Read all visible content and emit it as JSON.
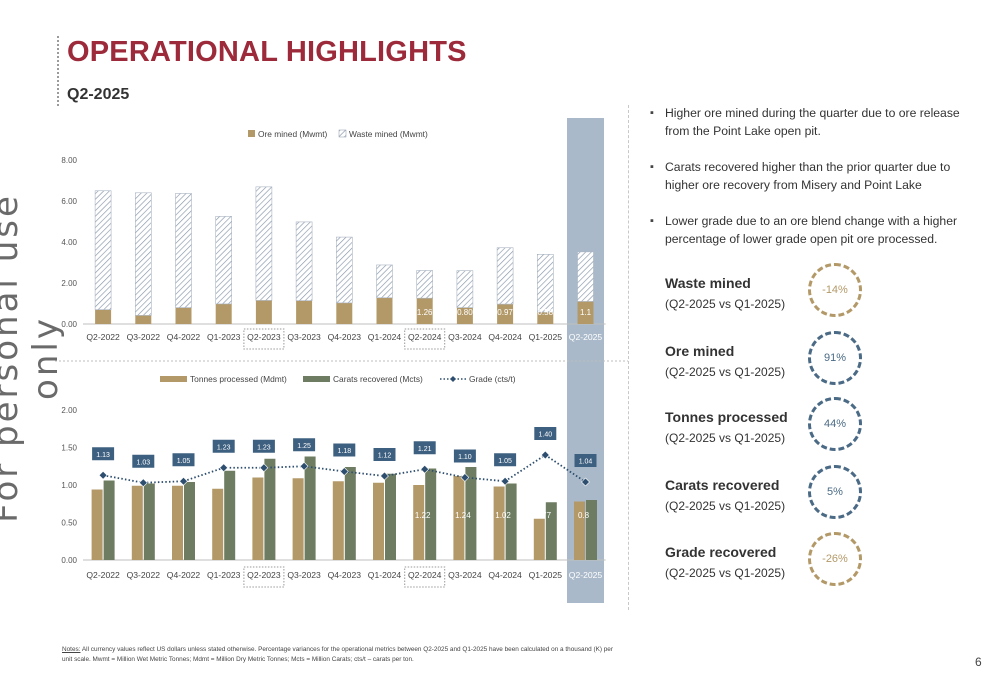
{
  "watermark": "For personal use only",
  "title": "OPERATIONAL HIGHLIGHTS",
  "subtitle": "Q2-2025",
  "bullets": [
    "Higher ore mined during the quarter due to ore release from the Point Lake open pit.",
    "Carats recovered higher than the prior quarter due to higher ore recovery from Misery and Point Lake",
    "Lower grade due to an ore blend change with a higher percentage of lower grade open pit ore processed."
  ],
  "metrics": [
    {
      "name": "Waste mined",
      "comparison": "(Q2-2025 vs Q1-2025)",
      "value": "-14%",
      "color": "gold"
    },
    {
      "name": "Ore mined",
      "comparison": "(Q2-2025 vs Q1-2025)",
      "value": "91%",
      "color": "blue"
    },
    {
      "name": "Tonnes processed",
      "comparison": "(Q2-2025 vs Q1-2025)",
      "value": "44%",
      "color": "blue"
    },
    {
      "name": "Carats recovered",
      "comparison": "(Q2-2025 vs Q1-2025)",
      "value": "5%",
      "color": "blue"
    },
    {
      "name": "Grade recovered",
      "comparison": "(Q2-2025 vs Q1-2025)",
      "value": "-26%",
      "color": "gold"
    }
  ],
  "notes_label": "Notes:",
  "notes_text": " All currency values reflect US dollars unless stated otherwise. Percentage variances for the operational metrics between Q2-2025 and Q1-2025 have been calculated on a thousand (K) per unit scale. Mwmt = Million Wet Metric Tonnes; Mdmt = Million Dry Metric Tonnes; Mcts = Million Carats; cts/t – carats per ton.",
  "page_number": "6",
  "colors": {
    "title": "#9c2a3a",
    "tan": "#b39968",
    "green": "#6e7d62",
    "navy": "#2d4e6f",
    "highlight": "#a9b9c9",
    "hatch": "#7a8ba0"
  },
  "chart_data": [
    {
      "type": "bar",
      "stacked": true,
      "categories": [
        "Q2-2022",
        "Q3-2022",
        "Q4-2022",
        "Q1-2023",
        "Q2-2023",
        "Q3-2023",
        "Q4-2023",
        "Q1-2024",
        "Q2-2024",
        "Q3-2024",
        "Q4-2024",
        "Q1-2025",
        "Q2-2025"
      ],
      "series": [
        {
          "name": "Ore mined (Mwmt)",
          "values": [
            0.7,
            0.42,
            0.8,
            0.98,
            1.15,
            1.14,
            1.03,
            1.28,
            1.26,
            0.8,
            0.97,
            0.58,
            1.1
          ]
        },
        {
          "name": "Waste mined (Mwmt)",
          "values": [
            5.8,
            5.98,
            5.57,
            4.27,
            5.54,
            3.84,
            3.21,
            1.6,
            1.35,
            1.8,
            2.75,
            2.82,
            2.42
          ]
        }
      ],
      "data_labels": {
        "8": "1.26",
        "9": "0.80",
        "10": "0.97",
        "11": "0.58",
        "12": "1.1"
      },
      "yticks": [
        "0.00",
        "2.00",
        "4.00",
        "6.00",
        "8.00"
      ],
      "ylim": [
        0,
        8
      ],
      "legend": "top",
      "highlight_categories": [
        "Q2-2023",
        "Q2-2024"
      ]
    },
    {
      "type": "bar",
      "categories": [
        "Q2-2022",
        "Q3-2022",
        "Q4-2022",
        "Q1-2023",
        "Q2-2023",
        "Q3-2023",
        "Q4-2023",
        "Q1-2024",
        "Q2-2024",
        "Q3-2024",
        "Q4-2024",
        "Q1-2025",
        "Q2-2025"
      ],
      "series": [
        {
          "name": "Tonnes processed (Mdmt)",
          "values": [
            0.94,
            0.99,
            0.99,
            0.95,
            1.1,
            1.09,
            1.05,
            1.03,
            1.0,
            1.12,
            0.98,
            0.55,
            0.78
          ]
        },
        {
          "name": "Carats recovered (Mcts)",
          "values": [
            1.06,
            1.02,
            1.04,
            1.19,
            1.35,
            1.38,
            1.24,
            1.15,
            1.22,
            1.24,
            1.02,
            0.77,
            0.8
          ]
        },
        {
          "name": "Grade (cts/t)",
          "type": "line",
          "values": [
            1.13,
            1.03,
            1.05,
            1.23,
            1.23,
            1.25,
            1.18,
            1.12,
            1.21,
            1.1,
            1.05,
            1.4,
            1.04
          ]
        }
      ],
      "grade_labels": [
        "1.13",
        "1.03",
        "1.05",
        "1.23",
        "1.23",
        "1.25",
        "1.18",
        "1.12",
        "1.21",
        "1.10",
        "1.05",
        "1.40",
        "1.04"
      ],
      "carat_labels": {
        "8": "1.22",
        "9": "1.24",
        "10": "1.02",
        "11": "0.77",
        "12": "0.8"
      },
      "yticks": [
        "0.00",
        "0.50",
        "1.00",
        "1.50",
        "2.00"
      ],
      "ylim": [
        0,
        2
      ],
      "legend": "top",
      "highlight_categories": [
        "Q2-2023",
        "Q2-2024"
      ]
    }
  ]
}
